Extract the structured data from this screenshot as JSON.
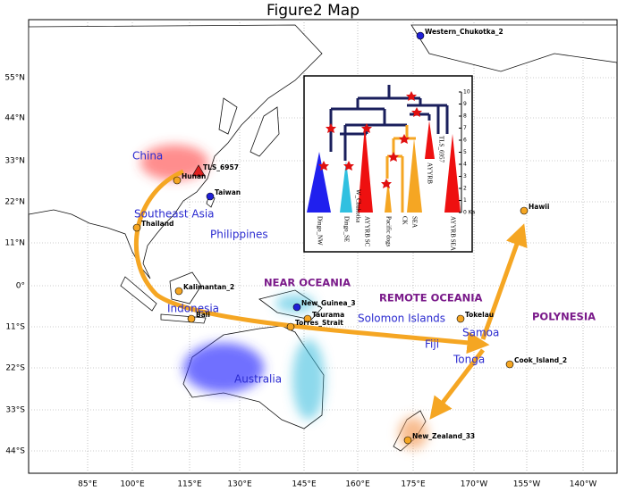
{
  "title": "Figure2 Map",
  "lat_labels": [
    "55°N",
    "44°N",
    "33°N",
    "22°N",
    "11°N",
    "0°",
    "11°S",
    "22°S",
    "33°S",
    "44°S"
  ],
  "lon_labels": [
    "85°E",
    "100°E",
    "115°E",
    "130°E",
    "145°E",
    "160°E",
    "175°E",
    "170°W",
    "155°W",
    "140°W"
  ],
  "sites": [
    {
      "label": "Western_Chukotka_2",
      "color": "#1f1fd6",
      "shape": "circle"
    },
    {
      "label": "TLS_6957",
      "color": "#e02020",
      "shape": "triangle"
    },
    {
      "label": "Hunan",
      "color": "#f5a623",
      "shape": "circle"
    },
    {
      "label": "Taiwan",
      "color": "#1f1fd6",
      "shape": "circle"
    },
    {
      "label": "Thailand",
      "color": "#f5a623",
      "shape": "circle"
    },
    {
      "label": "Kalimantan_2",
      "color": "#f5a623",
      "shape": "circle"
    },
    {
      "label": "Bali",
      "color": "#f5a623",
      "shape": "circle"
    },
    {
      "label": "New_Guinea_3",
      "color": "#1f1fd6",
      "shape": "circle"
    },
    {
      "label": "Taurama",
      "color": "#f5a623",
      "shape": "circle"
    },
    {
      "label": "Torres_Strait",
      "color": "#f5a623",
      "shape": "circle"
    },
    {
      "label": "Tokelau",
      "color": "#f5a623",
      "shape": "circle"
    },
    {
      "label": "Hawii",
      "color": "#f5a623",
      "shape": "circle"
    },
    {
      "label": "Cook_Island_2",
      "color": "#f5a623",
      "shape": "circle"
    },
    {
      "label": "New_Zealand_33",
      "color": "#f5a623",
      "shape": "circle"
    }
  ],
  "regions": [
    "China",
    "Southeast Asia",
    "Philippines",
    "Indonesia",
    "Australia",
    "Solomon Islands",
    "Fiji",
    "Samoa",
    "Tonga"
  ],
  "zones": [
    "NEAR OCEANIA",
    "REMOTE OCEANIA",
    "POLYNESIA"
  ],
  "inset": {
    "leaves": [
      "Dingo_NW",
      "Dingo_SE",
      "W_Chukotka",
      "AYYRB SC",
      "Pacific dogs",
      "CK",
      "SEA",
      "AYYRB",
      "TLS_6957",
      "AYYRB SEA"
    ],
    "scale_ticks": [
      10,
      9,
      8,
      7,
      6,
      5,
      4,
      3,
      2,
      1,
      {
        "value": 0,
        "label": "0 Ka"
      }
    ]
  }
}
